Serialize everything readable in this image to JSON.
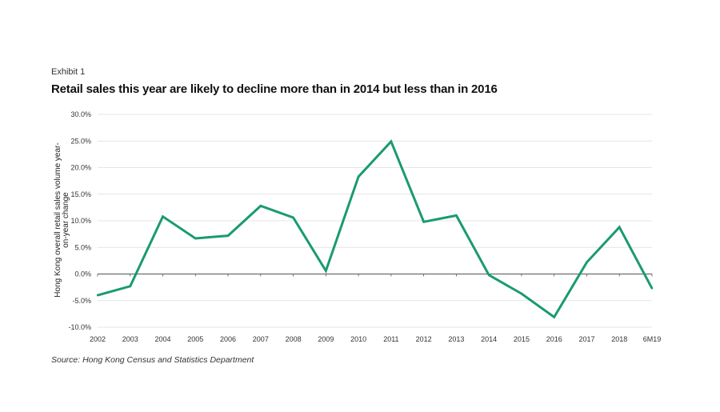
{
  "exhibit_label": "Exhibit 1",
  "source": "Source: Hong Kong Census and Statistics Department",
  "chart_data": {
    "type": "line",
    "title": "Retail sales this year are likely to decline more than in 2014 but less than in 2016",
    "xlabel": "",
    "ylabel_lines": [
      "Hong Kong overall retail sales volume year-",
      "on-year change"
    ],
    "categories": [
      "2002",
      "2003",
      "2004",
      "2005",
      "2006",
      "2007",
      "2008",
      "2009",
      "2010",
      "2011",
      "2012",
      "2013",
      "2014",
      "2015",
      "2016",
      "2017",
      "2018",
      "6M19"
    ],
    "series": [
      {
        "values": [
          -4.0,
          -2.3,
          10.8,
          6.7,
          7.2,
          12.8,
          10.6,
          0.6,
          18.3,
          24.9,
          9.8,
          11.0,
          -0.2,
          -3.7,
          -8.1,
          2.2,
          8.8,
          -2.7
        ]
      }
    ],
    "ylim": [
      -10,
      30
    ],
    "yticks": [
      "-10.0%",
      "-5.0%",
      "0.0%",
      "5.0%",
      "10.0%",
      "15.0%",
      "20.0%",
      "25.0%",
      "30.0%"
    ],
    "grid": true,
    "legend": "none",
    "line_color": "#1a9a72"
  }
}
